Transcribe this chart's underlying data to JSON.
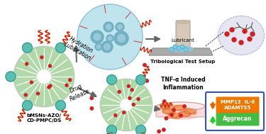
{
  "bg_color": "#ffffff",
  "label_bmsn": "bMSNs-AZO/\nCD-PMPC/DS",
  "label_hydration": "Hydration\nLubrication",
  "label_drug": "Drug\nRelease",
  "label_tribological": "Tribological Test Setup",
  "label_lubricant": "Lubricant",
  "label_tnf": "TNF-α Induced\nInflammation",
  "label_aggrecan": "Aggrecan",
  "label_mmp": "MMP13  IL-6\nADAMTS5",
  "green_color": "#44bb44",
  "orange_color": "#ee7700",
  "teal_cap": "#5abfb0",
  "teal_ball": "#88d0d8",
  "light_blue_ball": "#b8e0ea",
  "msn_green_light": "#a8d8a8",
  "msn_green_dark": "#78b878",
  "arrow_gray": "#777777",
  "red_dot": "#cc2222",
  "legend_border": "#3355bb",
  "plate_gray": "#aaaaaa",
  "dish_pink": "#ffc8c8",
  "cell_orange": "#ee8866"
}
